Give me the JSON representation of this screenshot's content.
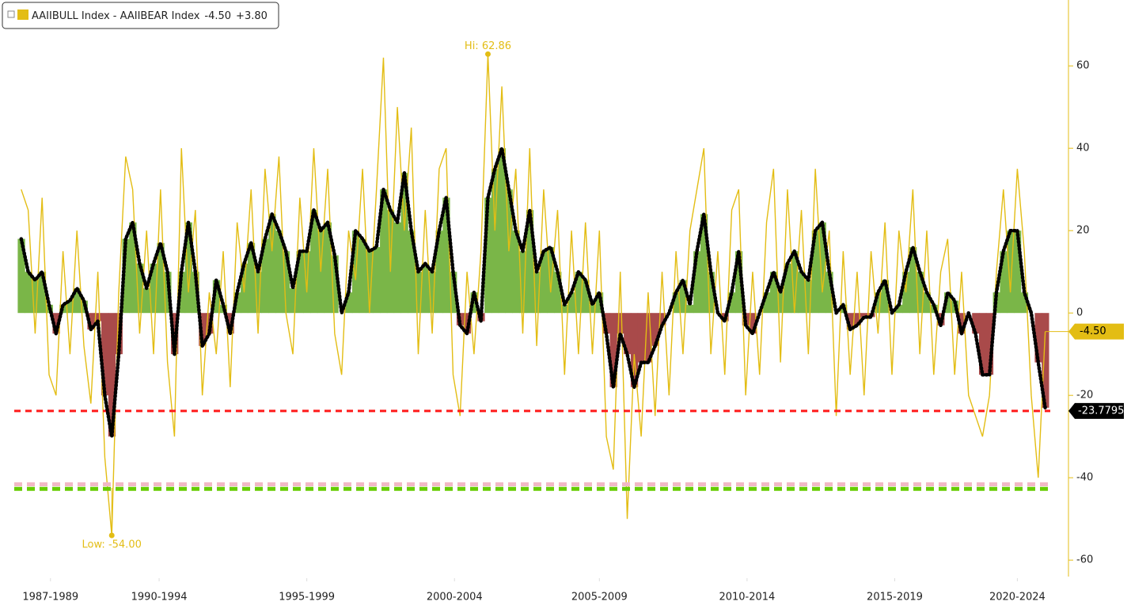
{
  "chart_data": {
    "type": "line",
    "legend": {
      "change_label": "+3.80"
    },
    "x": [
      1987.75,
      1988,
      1988.25,
      1988.5,
      1988.75,
      1989,
      1989.25,
      1989.5,
      1989.75,
      1990,
      1990.25,
      1990.5,
      1990.75,
      1991,
      1991.25,
      1991.5,
      1991.75,
      1992,
      1992.25,
      1992.5,
      1992.75,
      1993,
      1993.25,
      1993.5,
      1993.75,
      1994,
      1994.25,
      1994.5,
      1994.75,
      1995,
      1995.25,
      1995.5,
      1995.75,
      1996,
      1996.25,
      1996.5,
      1996.75,
      1997,
      1997.25,
      1997.5,
      1997.75,
      1998,
      1998.25,
      1998.5,
      1998.75,
      1999,
      1999.25,
      1999.5,
      1999.75,
      2000,
      2000.25,
      2000.5,
      2000.75,
      2001,
      2001.25,
      2001.5,
      2001.75,
      2002,
      2002.25,
      2002.5,
      2002.75,
      2003,
      2003.25,
      2003.5,
      2003.75,
      2004,
      2004.25,
      2004.5,
      2004.75,
      2005,
      2005.25,
      2005.5,
      2005.75,
      2006,
      2006.25,
      2006.5,
      2006.75,
      2007,
      2007.25,
      2007.5,
      2007.75,
      2008,
      2008.25,
      2008.5,
      2008.75,
      2009,
      2009.25,
      2009.5,
      2009.75,
      2010,
      2010.25,
      2010.5,
      2010.75,
      2011,
      2011.25,
      2011.5,
      2011.75,
      2012,
      2012.25,
      2012.5,
      2012.75,
      2013,
      2013.25,
      2013.5,
      2013.75,
      2014,
      2014.25,
      2014.5,
      2014.75,
      2015,
      2015.25,
      2015.5,
      2015.75,
      2016,
      2016.25,
      2016.5,
      2016.75,
      2017,
      2017.25,
      2017.5,
      2017.75,
      2018,
      2018.25,
      2018.5,
      2018.75,
      2019,
      2019.25,
      2019.5,
      2019.75,
      2020,
      2020.25,
      2020.5,
      2020.75,
      2021,
      2021.25,
      2021.5,
      2021.75,
      2022,
      2022.25,
      2022.5,
      2022.75,
      2023,
      2023.25,
      2023.5,
      2023.75,
      2024,
      2024.25,
      2024.5
    ],
    "series": [
      {
        "name": "AAIIBULL Index - AAIIBEAR Index",
        "color": "#e3bd14",
        "values": [
          30,
          25,
          -5,
          28,
          -15,
          -20,
          15,
          -10,
          20,
          -8,
          -22,
          10,
          -35,
          -54,
          5,
          38,
          30,
          -5,
          20,
          -10,
          30,
          -12,
          -30,
          40,
          5,
          25,
          -20,
          5,
          -10,
          15,
          -18,
          22,
          5,
          30,
          -5,
          35,
          15,
          38,
          0,
          -10,
          28,
          5,
          40,
          10,
          35,
          -5,
          -15,
          20,
          8,
          35,
          0,
          30,
          62,
          10,
          50,
          20,
          45,
          -10,
          25,
          -5,
          35,
          40,
          -15,
          -25,
          10,
          -10,
          15,
          62.86,
          20,
          55,
          15,
          35,
          -5,
          40,
          -8,
          30,
          5,
          25,
          -15,
          20,
          -10,
          22,
          -10,
          20,
          -30,
          -38,
          10,
          -50,
          -10,
          -30,
          5,
          -25,
          10,
          -20,
          15,
          -10,
          20,
          30,
          40,
          -10,
          15,
          -15,
          25,
          30,
          -20,
          10,
          -15,
          22,
          35,
          -12,
          30,
          0,
          25,
          -10,
          35,
          5,
          20,
          -25,
          15,
          -15,
          10,
          -20,
          15,
          -5,
          22,
          -15,
          20,
          5,
          30,
          -10,
          20,
          -15,
          10,
          18,
          -15,
          10,
          -20,
          -25,
          -30,
          -20,
          10,
          30,
          5,
          35,
          15,
          -20,
          -40,
          -4.5
        ],
        "value_labels": {
          "147": "-4.50"
        }
      },
      {
        "color": "#000000",
        "fill_positive": "#7ab648",
        "fill_negative": "#a94a4a",
        "values": [
          18,
          10,
          8,
          10,
          2,
          -5,
          2,
          3,
          6,
          3,
          -4,
          -2,
          -20,
          -30,
          -10,
          18,
          22,
          12,
          6,
          12,
          17,
          10,
          -10,
          10,
          22,
          10,
          -8,
          -5,
          8,
          2,
          -5,
          5,
          12,
          17,
          10,
          18,
          24,
          20,
          15,
          6,
          15,
          15,
          25,
          20,
          22,
          14,
          0,
          5,
          20,
          18,
          15,
          16,
          30,
          25,
          22,
          34,
          20,
          10,
          12,
          10,
          20,
          28,
          10,
          -3,
          -5,
          5,
          -2,
          28,
          35,
          40,
          30,
          20,
          15,
          25,
          10,
          15,
          16,
          10,
          2,
          5,
          10,
          8,
          2,
          5,
          -5,
          -18,
          -5,
          -10,
          -18,
          -12,
          -12,
          -8,
          -3,
          0,
          5,
          8,
          2,
          15,
          24,
          10,
          0,
          -2,
          5,
          15,
          -3,
          -5,
          0,
          5,
          10,
          5,
          12,
          15,
          10,
          8,
          20,
          22,
          10,
          0,
          2,
          -4,
          -3,
          -1,
          -1,
          5,
          8,
          0,
          2,
          10,
          16,
          10,
          5,
          2,
          -3,
          5,
          3,
          -5,
          0,
          -5,
          -15,
          -15,
          5,
          15,
          20,
          20,
          5,
          0,
          -12,
          -23
        ]
      }
    ],
    "hlines": [
      {
        "value": -23.7795,
        "color": "#ff1a1a"
      },
      {
        "value": -41.6,
        "color": "#f2b8c6"
      },
      {
        "value": -42.7,
        "color": "#66cc00"
      }
    ],
    "annotations": [
      {
        "text": "Hi: 62.86",
        "x": 2004.5,
        "y": 62.86
      },
      {
        "text": "Low: -54.00",
        "x": 1991,
        "y": -54
      }
    ],
    "xlim": [
      1987.5,
      2025.25
    ],
    "xticks": [
      {
        "value": 1988.8,
        "label": "1987-1989"
      },
      {
        "value": 1992.7,
        "label": "1990-1994"
      },
      {
        "value": 1998,
        "label": "1995-1999"
      },
      {
        "value": 2003.3,
        "label": "2000-2004"
      },
      {
        "value": 2008.5,
        "label": "2005-2009"
      },
      {
        "value": 2013.8,
        "label": "2010-2014"
      },
      {
        "value": 2019.1,
        "label": "2015-2019"
      },
      {
        "value": 2023.5,
        "label": "2020-2024"
      }
    ],
    "ylim": [
      -64,
      76
    ],
    "yticks": [
      60,
      40,
      20,
      0,
      -20,
      -40,
      -60
    ]
  }
}
